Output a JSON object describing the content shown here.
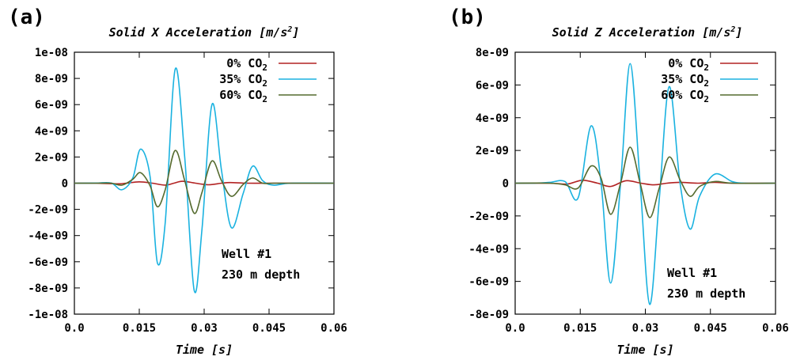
{
  "chart_data": [
    {
      "type": "line",
      "panel_label": "(a)",
      "title": "Solid X Acceleration [m/s",
      "title_sup": "2",
      "title_end": "]",
      "xlabel": "Time [s]",
      "ylabel": "",
      "xlim": [
        0,
        0.06
      ],
      "ylim": [
        -1e-08,
        1e-08
      ],
      "xticks": [
        0,
        0.015,
        0.03,
        0.045,
        0.06
      ],
      "xtick_labels": [
        "0.0",
        "0.015",
        "0.03",
        "0.045",
        "0.06"
      ],
      "yticks": [
        -1e-08,
        -8e-09,
        -6e-09,
        -4e-09,
        -2e-09,
        0,
        2e-09,
        4e-09,
        6e-09,
        8e-09,
        1e-08
      ],
      "ytick_labels": [
        "-1e-08",
        "-8e-09",
        "-6e-09",
        "-4e-09",
        "-2e-09",
        "0",
        "2e-09",
        "4e-09",
        "6e-09",
        "8e-09",
        "1e-08"
      ],
      "legend_position": "top-right",
      "annotation": [
        "Well #1",
        "230 m depth"
      ],
      "series": [
        {
          "name": "0% CO",
          "name_sub": "2",
          "color": "#b22222",
          "x": [
            0,
            0.005,
            0.01,
            0.012,
            0.015,
            0.018,
            0.021,
            0.023,
            0.025,
            0.028,
            0.031,
            0.034,
            0.036,
            0.04,
            0.045,
            0.05,
            0.06
          ],
          "y": [
            0,
            0,
            -5e-11,
            0,
            1e-10,
            0,
            -1.5e-10,
            0,
            1.5e-10,
            0,
            -1.2e-10,
            0,
            5e-11,
            0,
            0,
            0,
            0
          ]
        },
        {
          "name": "35% CO",
          "name_sub": "2",
          "color": "#1ab2e0",
          "x": [
            0,
            0.005,
            0.0085,
            0.011,
            0.0135,
            0.0153,
            0.0175,
            0.0192,
            0.021,
            0.0233,
            0.0255,
            0.0277,
            0.0295,
            0.0318,
            0.034,
            0.0363,
            0.039,
            0.0412,
            0.0435,
            0.046,
            0.05,
            0.06
          ],
          "y": [
            0,
            1e-11,
            1e-11,
            -5e-10,
            4e-10,
            2.6e-09,
            5e-10,
            -6.1e-09,
            -3e-09,
            8.7e-09,
            2e-09,
            -8.2e-09,
            -3.5e-09,
            6e-09,
            1e-09,
            -3.4e-09,
            -8e-10,
            1.3e-09,
            2e-10,
            -1.5e-10,
            0,
            0
          ]
        },
        {
          "name": "60% CO",
          "name_sub": "2",
          "color": "#556b2f",
          "x": [
            0,
            0.005,
            0.0085,
            0.011,
            0.0135,
            0.0153,
            0.0175,
            0.0192,
            0.021,
            0.0233,
            0.0255,
            0.0277,
            0.0295,
            0.0318,
            0.034,
            0.0363,
            0.039,
            0.0412,
            0.0435,
            0.046,
            0.05,
            0.06
          ],
          "y": [
            0,
            0,
            0,
            -1.5e-10,
            3e-10,
            8e-10,
            -2e-10,
            -1.8e-09,
            -5e-10,
            2.5e-09,
            2e-10,
            -2.3e-09,
            -7e-10,
            1.7e-09,
            2e-10,
            -1e-09,
            -1e-10,
            4e-10,
            0,
            0,
            0,
            0
          ]
        }
      ]
    },
    {
      "type": "line",
      "panel_label": "(b)",
      "title": "Solid Z Acceleration [m/s",
      "title_sup": "2",
      "title_end": "]",
      "xlabel": "Time [s]",
      "ylabel": "",
      "xlim": [
        0,
        0.06
      ],
      "ylim": [
        -8e-09,
        8e-09
      ],
      "xticks": [
        0,
        0.015,
        0.03,
        0.045,
        0.06
      ],
      "xtick_labels": [
        "0.0",
        "0.015",
        "0.03",
        "0.045",
        "0.06"
      ],
      "yticks": [
        -8e-09,
        -6e-09,
        -4e-09,
        -2e-09,
        0,
        2e-09,
        4e-09,
        6e-09,
        8e-09
      ],
      "ytick_labels": [
        "-8e-09",
        "-6e-09",
        "-4e-09",
        "-2e-09",
        "0",
        "2e-09",
        "4e-09",
        "6e-09",
        "8e-09"
      ],
      "legend_position": "top-right",
      "annotation": [
        "Well #1",
        "230 m depth"
      ],
      "series": [
        {
          "name": "0% CO",
          "name_sub": "2",
          "color": "#b22222",
          "x": [
            0,
            0.008,
            0.012,
            0.0155,
            0.019,
            0.022,
            0.0255,
            0.029,
            0.032,
            0.035,
            0.038,
            0.042,
            0.046,
            0.05,
            0.06
          ],
          "y": [
            0,
            0,
            -5e-11,
            1.8e-10,
            0,
            -2e-10,
            1.5e-10,
            0,
            -1e-10,
            0,
            5e-11,
            0,
            5e-11,
            0,
            0
          ]
        },
        {
          "name": "35% CO",
          "name_sub": "2",
          "color": "#1ab2e0",
          "x": [
            0,
            0.005,
            0.008,
            0.0115,
            0.0145,
            0.0175,
            0.0198,
            0.022,
            0.0243,
            0.0265,
            0.0288,
            0.031,
            0.0332,
            0.0355,
            0.038,
            0.0403,
            0.0425,
            0.046,
            0.05,
            0.053,
            0.06
          ],
          "y": [
            0,
            1e-11,
            5e-11,
            1e-10,
            -9e-10,
            3.5e-09,
            0,
            -6.1e-09,
            0,
            7.3e-09,
            0,
            -7.4e-09,
            -1e-09,
            5.9e-09,
            0,
            -2.8e-09,
            -8e-10,
            5.5e-10,
            1e-10,
            0,
            0
          ]
        },
        {
          "name": "60% CO",
          "name_sub": "2",
          "color": "#556b2f",
          "x": [
            0,
            0.008,
            0.0115,
            0.0145,
            0.0175,
            0.0198,
            0.022,
            0.0243,
            0.0265,
            0.0288,
            0.031,
            0.0332,
            0.0355,
            0.038,
            0.0403,
            0.0425,
            0.046,
            0.05,
            0.06
          ],
          "y": [
            0,
            0,
            -1e-10,
            -3e-10,
            1.05e-09,
            3e-10,
            -1.9e-09,
            0,
            2.2e-09,
            0,
            -2.1e-09,
            -3e-10,
            1.6e-09,
            2e-10,
            -8e-10,
            -2e-10,
            1e-10,
            0,
            0
          ]
        }
      ]
    }
  ]
}
